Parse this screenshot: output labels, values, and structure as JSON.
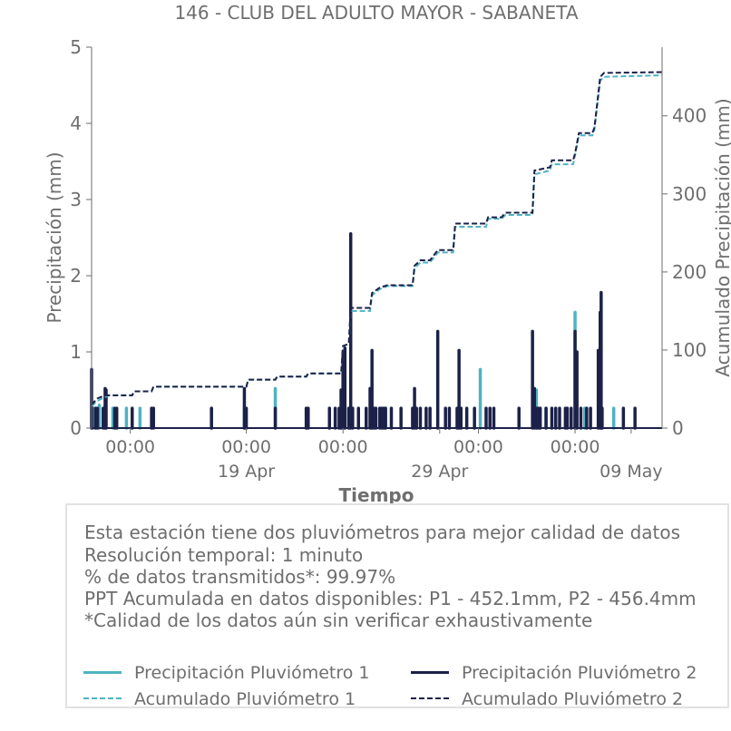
{
  "chart_data": {
    "type": "bar+line",
    "title": "146 - CLUB DEL ADULTO MAYOR - SABANETA",
    "xlabel": "Tiempo",
    "ylabel": "Precipitación (mm)",
    "y2label": "Acumulado Precipitación (mm)",
    "ylim": [
      0,
      5
    ],
    "y2lim": [
      0,
      488
    ],
    "yticks": [
      "0",
      "1",
      "2",
      "3",
      "4",
      "5"
    ],
    "y2ticks": [
      "0",
      "100",
      "200",
      "300",
      "400"
    ],
    "xlim": [
      0,
      29.5
    ],
    "xticks": [
      {
        "x": 2,
        "top": "00:00",
        "bottom": ""
      },
      {
        "x": 8,
        "top": "00:00",
        "bottom": "19 Apr"
      },
      {
        "x": 13,
        "top": "00:00",
        "bottom": ""
      },
      {
        "x": 18,
        "top": "",
        "bottom": "29 Apr"
      },
      {
        "x": 20,
        "top": "00:00",
        "bottom": ""
      },
      {
        "x": 25,
        "top": "00:00",
        "bottom": ""
      },
      {
        "x": 27.9,
        "top": "",
        "bottom": "09 May"
      }
    ],
    "colors": {
      "p1": "#4fb3c2",
      "p2": "#1c2148"
    },
    "series": [
      {
        "name": "Precipitación Pluviómetro 1",
        "key": "p1",
        "kind": "bars",
        "points": [
          [
            0.1,
            0.26
          ],
          [
            0.4,
            0.3
          ],
          [
            1.1,
            0.26
          ],
          [
            1.8,
            0.26
          ],
          [
            2.5,
            0.26
          ],
          [
            6.2,
            0.26
          ],
          [
            7.9,
            0.26
          ],
          [
            9.5,
            0.52
          ],
          [
            11.1,
            0.26
          ],
          [
            12.3,
            0.26
          ],
          [
            12.9,
            0.26
          ],
          [
            13.3,
            0.26
          ],
          [
            14.5,
            0.26
          ],
          [
            15.2,
            0.26
          ],
          [
            16.6,
            0.26
          ],
          [
            19.1,
            0.26
          ],
          [
            20.1,
            0.77
          ],
          [
            23.0,
            0.5
          ],
          [
            23.5,
            0.26
          ],
          [
            25.0,
            1.52
          ],
          [
            25.5,
            0.26
          ],
          [
            27.0,
            0.26
          ]
        ]
      },
      {
        "name": "Precipitación Pluviómetro 2",
        "key": "p2",
        "kind": "bars",
        "points": [
          [
            0.0,
            0.77
          ],
          [
            0.2,
            0.26
          ],
          [
            0.3,
            0.26
          ],
          [
            0.6,
            0.26
          ],
          [
            0.7,
            0.52
          ],
          [
            0.75,
            0.5
          ],
          [
            1.2,
            0.26
          ],
          [
            1.3,
            0.26
          ],
          [
            2.1,
            0.26
          ],
          [
            3.1,
            0.26
          ],
          [
            3.2,
            0.26
          ],
          [
            6.2,
            0.26
          ],
          [
            7.9,
            0.52
          ],
          [
            8.0,
            0.26
          ],
          [
            9.5,
            0.26
          ],
          [
            11.1,
            0.26
          ],
          [
            11.2,
            0.26
          ],
          [
            12.3,
            0.26
          ],
          [
            12.6,
            0.26
          ],
          [
            12.8,
            0.26
          ],
          [
            12.9,
            0.5
          ],
          [
            13.0,
            1.0
          ],
          [
            13.1,
            1.05
          ],
          [
            13.3,
            0.26
          ],
          [
            13.4,
            2.55
          ],
          [
            13.5,
            0.26
          ],
          [
            13.8,
            0.26
          ],
          [
            14.2,
            0.26
          ],
          [
            14.4,
            0.52
          ],
          [
            14.5,
            1.02
          ],
          [
            14.6,
            0.26
          ],
          [
            14.7,
            0.26
          ],
          [
            14.9,
            0.26
          ],
          [
            15.0,
            0.26
          ],
          [
            15.1,
            0.26
          ],
          [
            15.2,
            0.26
          ],
          [
            15.5,
            0.26
          ],
          [
            16.0,
            0.26
          ],
          [
            16.6,
            0.26
          ],
          [
            16.7,
            0.52
          ],
          [
            16.8,
            0.26
          ],
          [
            17.0,
            0.26
          ],
          [
            17.3,
            0.26
          ],
          [
            17.5,
            0.26
          ],
          [
            17.9,
            1.27
          ],
          [
            18.3,
            0.26
          ],
          [
            18.5,
            0.26
          ],
          [
            18.9,
            0.26
          ],
          [
            19.0,
            1.02
          ],
          [
            19.1,
            0.26
          ],
          [
            19.4,
            0.26
          ],
          [
            19.8,
            0.26
          ],
          [
            20.4,
            0.26
          ],
          [
            20.6,
            0.26
          ],
          [
            20.8,
            0.26
          ],
          [
            22.1,
            0.26
          ],
          [
            22.8,
            1.27
          ],
          [
            22.9,
            0.52
          ],
          [
            23.0,
            0.26
          ],
          [
            23.1,
            0.26
          ],
          [
            23.2,
            0.26
          ],
          [
            23.5,
            0.26
          ],
          [
            23.8,
            0.26
          ],
          [
            24.0,
            0.26
          ],
          [
            24.2,
            0.26
          ],
          [
            24.5,
            0.26
          ],
          [
            24.6,
            0.26
          ],
          [
            24.8,
            0.26
          ],
          [
            25.0,
            1.27
          ],
          [
            25.1,
            1.0
          ],
          [
            25.3,
            0.26
          ],
          [
            25.6,
            0.26
          ],
          [
            25.8,
            0.26
          ],
          [
            26.2,
            1.02
          ],
          [
            26.3,
            1.52
          ],
          [
            26.35,
            1.78
          ],
          [
            26.4,
            0.26
          ],
          [
            27.5,
            0.26
          ],
          [
            28.1,
            0.26
          ]
        ]
      },
      {
        "name": "Acumulado Pluviómetro 1",
        "key": "p1",
        "kind": "cumline",
        "points": [
          [
            0,
            28
          ],
          [
            0.3,
            35
          ],
          [
            0.9,
            42
          ],
          [
            2.1,
            42
          ],
          [
            2.2,
            47
          ],
          [
            3.1,
            47
          ],
          [
            3.2,
            53
          ],
          [
            8.0,
            53
          ],
          [
            8.1,
            62
          ],
          [
            9.5,
            62
          ],
          [
            9.6,
            66
          ],
          [
            11.1,
            66
          ],
          [
            11.2,
            70
          ],
          [
            12.9,
            70
          ],
          [
            13.0,
            105
          ],
          [
            13.3,
            108
          ],
          [
            13.4,
            150
          ],
          [
            14.4,
            150
          ],
          [
            14.5,
            170
          ],
          [
            14.9,
            178
          ],
          [
            15.3,
            182
          ],
          [
            16.6,
            182
          ],
          [
            16.7,
            205
          ],
          [
            17.0,
            212
          ],
          [
            17.5,
            212
          ],
          [
            17.9,
            225
          ],
          [
            18.7,
            225
          ],
          [
            18.8,
            258
          ],
          [
            20.4,
            258
          ],
          [
            20.5,
            268
          ],
          [
            21.2,
            268
          ],
          [
            21.4,
            273
          ],
          [
            22.8,
            273
          ],
          [
            22.9,
            325
          ],
          [
            23.7,
            330
          ],
          [
            23.8,
            338
          ],
          [
            24.9,
            338
          ],
          [
            25.0,
            350
          ],
          [
            25.2,
            375
          ],
          [
            25.9,
            375
          ],
          [
            26.0,
            382
          ],
          [
            26.3,
            445
          ],
          [
            26.5,
            450
          ],
          [
            29.5,
            452
          ]
        ]
      },
      {
        "name": "Acumulado Pluviómetro 2",
        "key": "p2",
        "kind": "cumline",
        "points": [
          [
            0,
            30
          ],
          [
            0.3,
            38
          ],
          [
            0.7,
            42
          ],
          [
            2.1,
            42
          ],
          [
            2.2,
            47
          ],
          [
            3.1,
            47
          ],
          [
            3.2,
            53
          ],
          [
            8.0,
            53
          ],
          [
            8.1,
            62
          ],
          [
            9.5,
            62
          ],
          [
            9.6,
            66
          ],
          [
            11.1,
            66
          ],
          [
            11.2,
            70
          ],
          [
            12.9,
            70
          ],
          [
            13.0,
            105
          ],
          [
            13.3,
            108
          ],
          [
            13.4,
            154
          ],
          [
            14.4,
            154
          ],
          [
            14.5,
            173
          ],
          [
            14.9,
            180
          ],
          [
            15.3,
            183
          ],
          [
            16.6,
            183
          ],
          [
            16.7,
            208
          ],
          [
            17.0,
            215
          ],
          [
            17.5,
            215
          ],
          [
            17.9,
            228
          ],
          [
            18.7,
            228
          ],
          [
            18.8,
            262
          ],
          [
            20.4,
            262
          ],
          [
            20.5,
            270
          ],
          [
            21.2,
            270
          ],
          [
            21.4,
            276
          ],
          [
            22.8,
            276
          ],
          [
            22.9,
            330
          ],
          [
            23.7,
            334
          ],
          [
            23.8,
            343
          ],
          [
            24.9,
            343
          ],
          [
            25.0,
            352
          ],
          [
            25.2,
            378
          ],
          [
            25.9,
            378
          ],
          [
            26.0,
            385
          ],
          [
            26.3,
            450
          ],
          [
            26.5,
            455
          ],
          [
            29.5,
            456
          ]
        ]
      }
    ]
  },
  "info": {
    "lines": [
      "Esta estación tiene dos pluviómetros para mejor calidad de datos",
      "Resolución temporal: 1 minuto",
      "% de datos transmitidos*: 99.97%",
      "PPT Acumulada en datos disponibles: P1 - 452.1mm, P2 - 456.4mm",
      "*Calidad de los datos aún sin verificar exhaustivamente"
    ],
    "legend": [
      {
        "label": "Precipitación Pluviómetro 1",
        "color": "#4fb3c2",
        "style": "solid"
      },
      {
        "label": "Precipitación Pluviómetro 2",
        "color": "#1c2148",
        "style": "solid"
      },
      {
        "label": "Acumulado Pluviómetro 1",
        "color": "#4fb3c2",
        "style": "dashed"
      },
      {
        "label": "Acumulado Pluviómetro 2",
        "color": "#1c2148",
        "style": "dashed"
      }
    ]
  }
}
